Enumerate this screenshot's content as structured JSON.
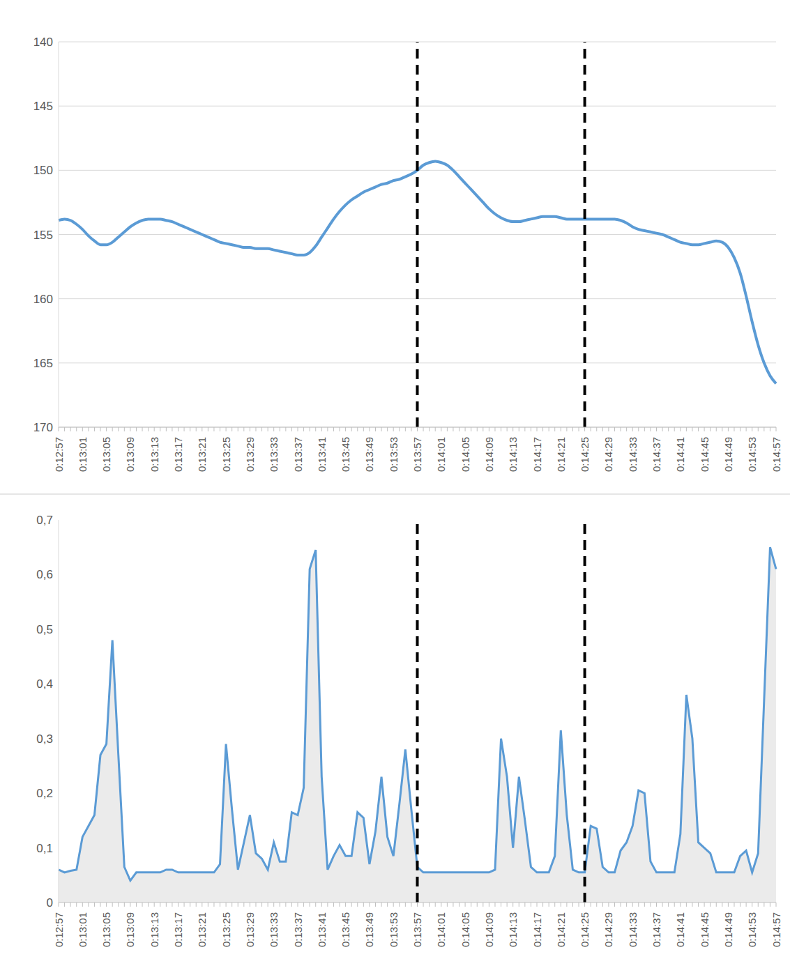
{
  "chart_data": [
    {
      "type": "line",
      "color": "#5b9bd5",
      "grid": true,
      "categories": [
        "0:12:57",
        null,
        null,
        null,
        "0:13:01",
        null,
        null,
        null,
        "0:13:05",
        null,
        null,
        null,
        "0:13:09",
        null,
        null,
        null,
        "0:13:13",
        null,
        null,
        null,
        "0:13:17",
        null,
        null,
        null,
        "0:13:21",
        null,
        null,
        null,
        "0:13:25",
        null,
        null,
        null,
        "0:13:29",
        null,
        null,
        null,
        "0:13:33",
        null,
        null,
        null,
        "0:13:37",
        null,
        null,
        null,
        "0:13:41",
        null,
        null,
        null,
        "0:13:45",
        null,
        null,
        null,
        "0:13:49",
        null,
        null,
        null,
        "0:13:53",
        null,
        null,
        null,
        "0:13:57",
        null,
        null,
        null,
        "0:14:01",
        null,
        null,
        null,
        "0:14:05",
        null,
        null,
        null,
        "0:14:09",
        null,
        null,
        null,
        "0:14:13",
        null,
        null,
        null,
        "0:14:17",
        null,
        null,
        null,
        "0:14:21",
        null,
        null,
        null,
        "0:14:25",
        null,
        null,
        null,
        "0:14:29",
        null,
        null,
        null,
        "0:14:33",
        null,
        null,
        null,
        "0:14:37",
        null,
        null,
        null,
        "0:14:41",
        null,
        null,
        null,
        "0:14:45",
        null,
        null,
        null,
        "0:14:49",
        null,
        null,
        null,
        "0:14:53",
        null,
        null,
        null,
        "0:14:57"
      ],
      "values": [
        153.9,
        153.8,
        153.9,
        154.2,
        154.6,
        155.1,
        155.5,
        155.8,
        155.8,
        155.6,
        155.2,
        154.8,
        154.4,
        154.1,
        153.9,
        153.8,
        153.8,
        153.8,
        153.9,
        154.0,
        154.2,
        154.4,
        154.6,
        154.8,
        155.0,
        155.2,
        155.4,
        155.6,
        155.7,
        155.8,
        155.9,
        156.0,
        156.0,
        156.1,
        156.1,
        156.1,
        156.2,
        156.3,
        156.4,
        156.5,
        156.6,
        156.6,
        156.4,
        155.9,
        155.2,
        154.5,
        153.8,
        153.2,
        152.7,
        152.3,
        152.0,
        151.7,
        151.5,
        151.3,
        151.1,
        151.0,
        150.8,
        150.7,
        150.5,
        150.3,
        150.0,
        149.6,
        149.4,
        149.3,
        149.4,
        149.6,
        150.0,
        150.5,
        151.0,
        151.5,
        152.0,
        152.5,
        153.0,
        153.4,
        153.7,
        153.9,
        154.0,
        154.0,
        153.9,
        153.8,
        153.7,
        153.6,
        153.6,
        153.6,
        153.7,
        153.8,
        153.8,
        153.8,
        153.8,
        153.8,
        153.8,
        153.8,
        153.8,
        153.8,
        153.9,
        154.1,
        154.4,
        154.6,
        154.7,
        154.8,
        154.9,
        155.0,
        155.2,
        155.4,
        155.6,
        155.7,
        155.8,
        155.8,
        155.7,
        155.6,
        155.5,
        155.6,
        156.0,
        156.8,
        158.0,
        159.8,
        161.8,
        163.6,
        165.0,
        166.0,
        166.6
      ],
      "ylim": [
        170,
        140
      ],
      "yticks": [
        140,
        145,
        150,
        155,
        160,
        165,
        170
      ],
      "vlines": [
        "0:13:57",
        "0:14:25"
      ]
    },
    {
      "type": "area",
      "color": "#5b9bd5",
      "grid": false,
      "categories": [
        "0:12:57",
        null,
        null,
        null,
        "0:13:01",
        null,
        null,
        null,
        "0:13:05",
        null,
        null,
        null,
        "0:13:09",
        null,
        null,
        null,
        "0:13:13",
        null,
        null,
        null,
        "0:13:17",
        null,
        null,
        null,
        "0:13:21",
        null,
        null,
        null,
        "0:13:25",
        null,
        null,
        null,
        "0:13:29",
        null,
        null,
        null,
        "0:13:33",
        null,
        null,
        null,
        "0:13:37",
        null,
        null,
        null,
        "0:13:41",
        null,
        null,
        null,
        "0:13:45",
        null,
        null,
        null,
        "0:13:49",
        null,
        null,
        null,
        "0:13:53",
        null,
        null,
        null,
        "0:13:57",
        null,
        null,
        null,
        "0:14:01",
        null,
        null,
        null,
        "0:14:05",
        null,
        null,
        null,
        "0:14:09",
        null,
        null,
        null,
        "0:14:13",
        null,
        null,
        null,
        "0:14:17",
        null,
        null,
        null,
        "0:14:21",
        null,
        null,
        null,
        "0:14:25",
        null,
        null,
        null,
        "0:14:29",
        null,
        null,
        null,
        "0:14:33",
        null,
        null,
        null,
        "0:14:37",
        null,
        null,
        null,
        "0:14:41",
        null,
        null,
        null,
        "0:14:45",
        null,
        null,
        null,
        "0:14:49",
        null,
        null,
        null,
        "0:14:53",
        null,
        null,
        null,
        "0:14:57"
      ],
      "values": [
        0.06,
        0.055,
        0.058,
        0.06,
        0.12,
        0.14,
        0.16,
        0.27,
        0.29,
        0.48,
        0.27,
        0.065,
        0.04,
        0.055,
        0.055,
        0.055,
        0.055,
        0.055,
        0.06,
        0.06,
        0.055,
        0.055,
        0.055,
        0.055,
        0.055,
        0.055,
        0.055,
        0.07,
        0.29,
        0.17,
        0.06,
        0.11,
        0.16,
        0.09,
        0.08,
        0.06,
        0.11,
        0.075,
        0.075,
        0.165,
        0.16,
        0.21,
        0.61,
        0.645,
        0.23,
        0.06,
        0.085,
        0.105,
        0.085,
        0.085,
        0.165,
        0.155,
        0.07,
        0.13,
        0.23,
        0.12,
        0.085,
        0.18,
        0.28,
        0.17,
        0.065,
        0.055,
        0.055,
        0.055,
        0.055,
        0.055,
        0.055,
        0.055,
        0.055,
        0.055,
        0.055,
        0.055,
        0.055,
        0.06,
        0.3,
        0.23,
        0.1,
        0.23,
        0.15,
        0.065,
        0.055,
        0.055,
        0.055,
        0.085,
        0.315,
        0.16,
        0.06,
        0.055,
        0.055,
        0.14,
        0.135,
        0.065,
        0.055,
        0.055,
        0.095,
        0.11,
        0.14,
        0.205,
        0.2,
        0.075,
        0.055,
        0.055,
        0.055,
        0.055,
        0.125,
        0.38,
        0.3,
        0.11,
        0.1,
        0.09,
        0.055,
        0.055,
        0.055,
        0.055,
        0.085,
        0.095,
        0.055,
        0.09,
        0.37,
        0.65,
        0.61
      ],
      "ylim": [
        0,
        0.7
      ],
      "yticks": [
        0,
        {
          "value": 0.1,
          "label": "0,1"
        },
        {
          "value": 0.2,
          "label": "0,2"
        },
        {
          "value": 0.3,
          "label": "0,3"
        },
        {
          "value": 0.4,
          "label": "0,4"
        },
        {
          "value": 0.5,
          "label": "0,5"
        },
        {
          "value": 0.6,
          "label": "0,6"
        },
        {
          "value": 0.7,
          "label": "0,7"
        }
      ],
      "vlines": [
        "0:13:57",
        "0:14:25"
      ]
    }
  ]
}
